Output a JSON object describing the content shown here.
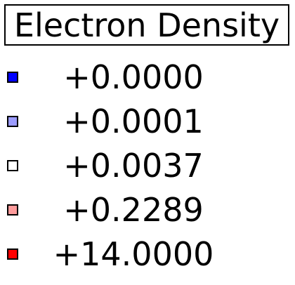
{
  "chart_data": {
    "type": "legend",
    "title": "Electron Density",
    "entries": [
      {
        "label": "+0.0000",
        "value": 0.0,
        "color": "#0000ff"
      },
      {
        "label": "+0.0001",
        "value": 0.0001,
        "color": "#9c9cff"
      },
      {
        "label": "+0.0037",
        "value": 0.0037,
        "color": "#ffffff"
      },
      {
        "label": "+0.2289",
        "value": 0.2289,
        "color": "#ff9c9c"
      },
      {
        "label": "+14.0000",
        "value": 14.0,
        "color": "#ff0000"
      }
    ]
  }
}
